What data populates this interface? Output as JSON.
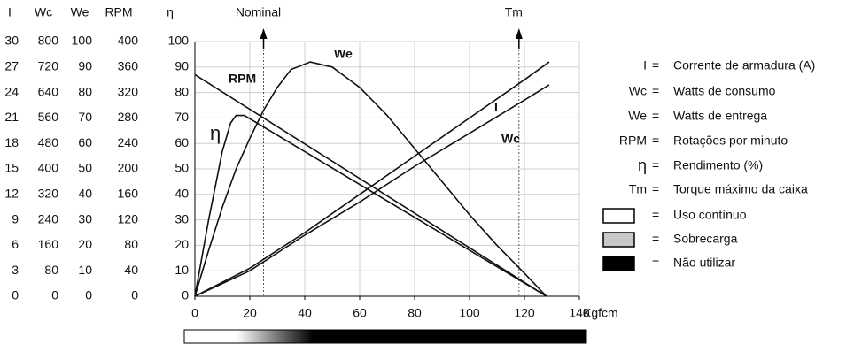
{
  "chart_data": {
    "type": "line",
    "xlabel": "Kgfcm",
    "xlim": [
      0,
      140
    ],
    "xticks": [
      0,
      20,
      40,
      60,
      80,
      100,
      120,
      140
    ],
    "grid": true,
    "axes": [
      {
        "label": "I",
        "ylim": [
          0,
          30
        ],
        "yticks": [
          0,
          3,
          6,
          9,
          12,
          15,
          18,
          21,
          24,
          27,
          30
        ]
      },
      {
        "label": "Wc",
        "ylim": [
          0,
          800
        ],
        "yticks": [
          0,
          80,
          160,
          240,
          320,
          400,
          480,
          560,
          640,
          720,
          800
        ]
      },
      {
        "label": "We",
        "ylim": [
          0,
          100
        ],
        "yticks": [
          0,
          10,
          20,
          30,
          40,
          50,
          60,
          70,
          80,
          90,
          100
        ]
      },
      {
        "label": "RPM",
        "ylim": [
          0,
          400
        ],
        "yticks": [
          0,
          40,
          80,
          120,
          160,
          200,
          240,
          280,
          320,
          360,
          400
        ]
      },
      {
        "label": "η",
        "ylim": [
          0,
          100
        ],
        "yticks": [
          0,
          10,
          20,
          30,
          40,
          50,
          60,
          70,
          80,
          90,
          100
        ]
      }
    ],
    "series": [
      {
        "name": "I",
        "axis": "I",
        "color": "#111111",
        "x": [
          0,
          20,
          40,
          60,
          80,
          100,
          120,
          129
        ],
        "values": [
          0,
          3.3,
          7.5,
          12,
          16.5,
          21,
          25.5,
          27.6
        ]
      },
      {
        "name": "Wc",
        "axis": "Wc",
        "color": "#111111",
        "x": [
          0,
          20,
          40,
          60,
          80,
          100,
          120,
          129
        ],
        "values": [
          0,
          80,
          192,
          296,
          408,
          512,
          616,
          664
        ]
      },
      {
        "name": "We",
        "axis": "We",
        "color": "#111111",
        "x": [
          0,
          5,
          10,
          15,
          20,
          25,
          30,
          35,
          42,
          50,
          60,
          70,
          80,
          90,
          100,
          110,
          120,
          128
        ],
        "values": [
          0,
          18,
          35,
          50,
          62,
          73,
          82,
          89,
          92,
          90,
          82,
          71,
          58,
          45,
          32,
          20,
          9,
          0
        ]
      },
      {
        "name": "RPM",
        "axis": "RPM",
        "color": "#111111",
        "x": [
          0,
          128
        ],
        "values": [
          348,
          0
        ]
      },
      {
        "name": "η",
        "axis": "η",
        "color": "#111111",
        "x": [
          0,
          5,
          10,
          13,
          15,
          18,
          128
        ],
        "values": [
          0,
          30,
          57,
          68,
          71,
          71,
          0
        ]
      }
    ],
    "annotations": [
      {
        "text": "Nominal",
        "x": 25
      },
      {
        "text": "Tm",
        "x": 118
      }
    ],
    "legend": {
      "separator": "=",
      "entries": [
        {
          "symbol": "I",
          "text": "Corrente de armadura (A)"
        },
        {
          "symbol": "Wc",
          "text": "Watts de consumo"
        },
        {
          "symbol": "We",
          "text": "Watts de entrega"
        },
        {
          "symbol": "RPM",
          "text": "Rotações por minuto"
        },
        {
          "symbol": "η",
          "text": "Rendimento (%)"
        },
        {
          "symbol": "Tm",
          "text": "Torque máximo da caixa"
        }
      ],
      "boxes": [
        {
          "color": "#ffffff",
          "text": "Uso contínuo"
        },
        {
          "color": "#c8c8c8",
          "text": "Sobrecarga"
        },
        {
          "color": "#000000",
          "text": "Não utilizar"
        }
      ]
    }
  }
}
